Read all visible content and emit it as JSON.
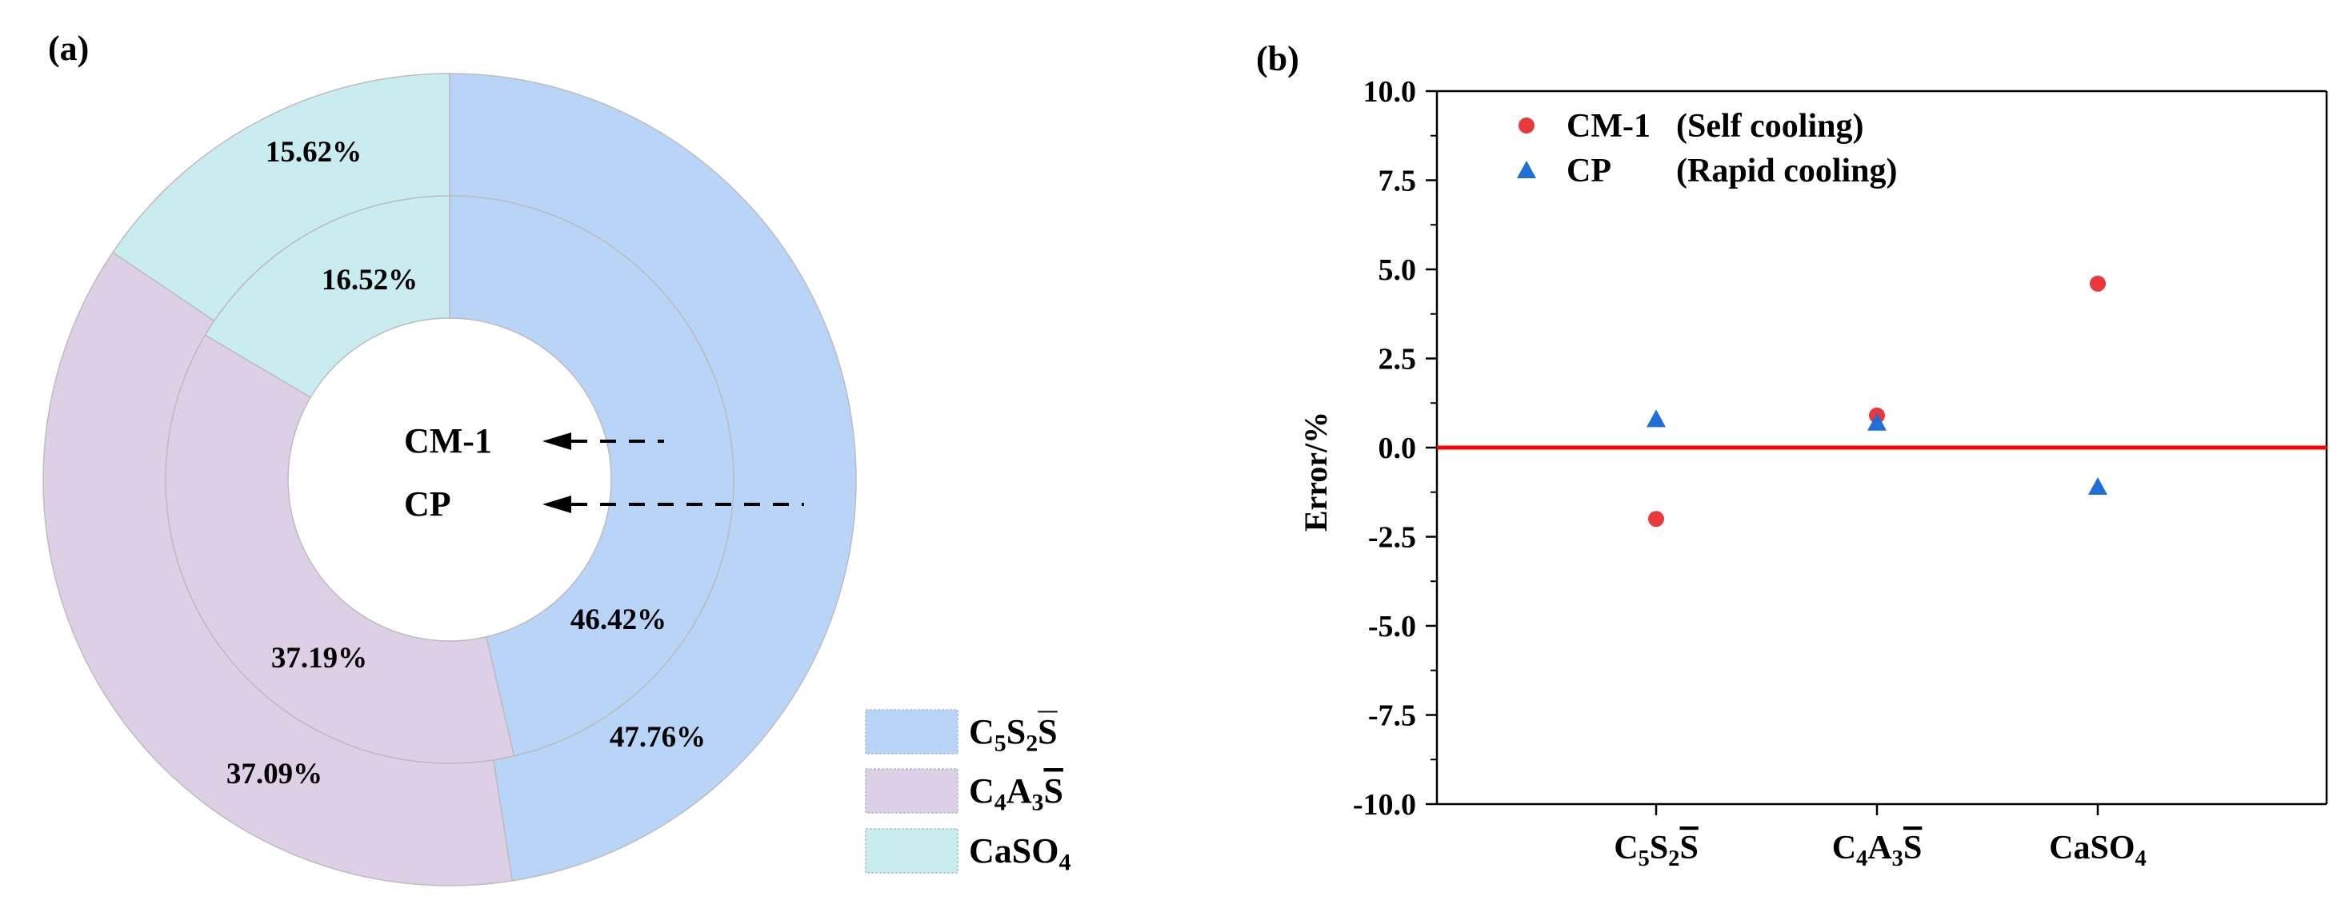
{
  "colors": {
    "c5s2s": "#b8d4f7",
    "c4a3s": "#ddd0e6",
    "caso4": "#c8ecf0",
    "ring_edge": "#bcbcbc",
    "cm1_marker": "#e8393d",
    "cp_marker": "#1f6fd6",
    "zero_line": "#ff0000"
  },
  "chart_data": [
    {
      "panel": "(a)",
      "type": "pie",
      "variant": "nested-donut",
      "categories": [
        {
          "key": "c5s2s",
          "base": "C",
          "parts": [
            {
              "t": "C"
            },
            {
              "sub": "5"
            },
            {
              "t": "S"
            },
            {
              "sub": "2"
            },
            {
              "over": "S"
            }
          ]
        },
        {
          "key": "c4a3s",
          "base": "C",
          "parts": [
            {
              "t": "C"
            },
            {
              "sub": "4"
            },
            {
              "t": "A"
            },
            {
              "sub": "3"
            },
            {
              "over": "S"
            }
          ]
        },
        {
          "key": "caso4",
          "base": "C",
          "parts": [
            {
              "t": "CaSO"
            },
            {
              "sub": "4"
            }
          ]
        }
      ],
      "rings": [
        {
          "name": "CM-1",
          "position": "inner",
          "values": [
            46.42,
            37.19,
            16.52
          ],
          "labels": [
            "46.42%",
            "37.19%",
            "16.52%"
          ]
        },
        {
          "name": "CP",
          "position": "outer",
          "values": [
            47.76,
            37.09,
            15.62
          ],
          "labels": [
            "47.76%",
            "37.09%",
            "15.62%"
          ]
        }
      ],
      "annotations": [
        "CM-1",
        "CP"
      ],
      "legend_placement": "bottom-right"
    },
    {
      "panel": "(b)",
      "type": "scatter",
      "ylabel": "Error/%",
      "xlabel": "",
      "ylim": [
        -10.0,
        10.0
      ],
      "yticks": [
        "10.0",
        "7.5",
        "5.0",
        "2.5",
        "0.0",
        "-2.5",
        "-5.0",
        "-7.5",
        "-10.0"
      ],
      "ytick_values": [
        10,
        7.5,
        5,
        2.5,
        0,
        -2.5,
        -5,
        -7.5,
        -10
      ],
      "categories": [
        {
          "parts": [
            {
              "t": "C"
            },
            {
              "sub": "5"
            },
            {
              "t": "S"
            },
            {
              "sub": "2"
            },
            {
              "over": "S"
            }
          ]
        },
        {
          "parts": [
            {
              "t": "C"
            },
            {
              "sub": "4"
            },
            {
              "t": "A"
            },
            {
              "sub": "3"
            },
            {
              "over": "S"
            }
          ]
        },
        {
          "parts": [
            {
              "t": "CaSO"
            },
            {
              "sub": "4"
            }
          ]
        }
      ],
      "series": [
        {
          "name": "CM-1",
          "note": "(Self cooling)",
          "marker": "circle",
          "values": [
            -2.0,
            0.9,
            4.6
          ]
        },
        {
          "name": "CP",
          "note": "(Rapid cooling)",
          "marker": "triangle",
          "values": [
            0.8,
            0.7,
            -1.1
          ]
        }
      ],
      "reference_line": 0.0,
      "legend_placement": "top-left"
    }
  ]
}
